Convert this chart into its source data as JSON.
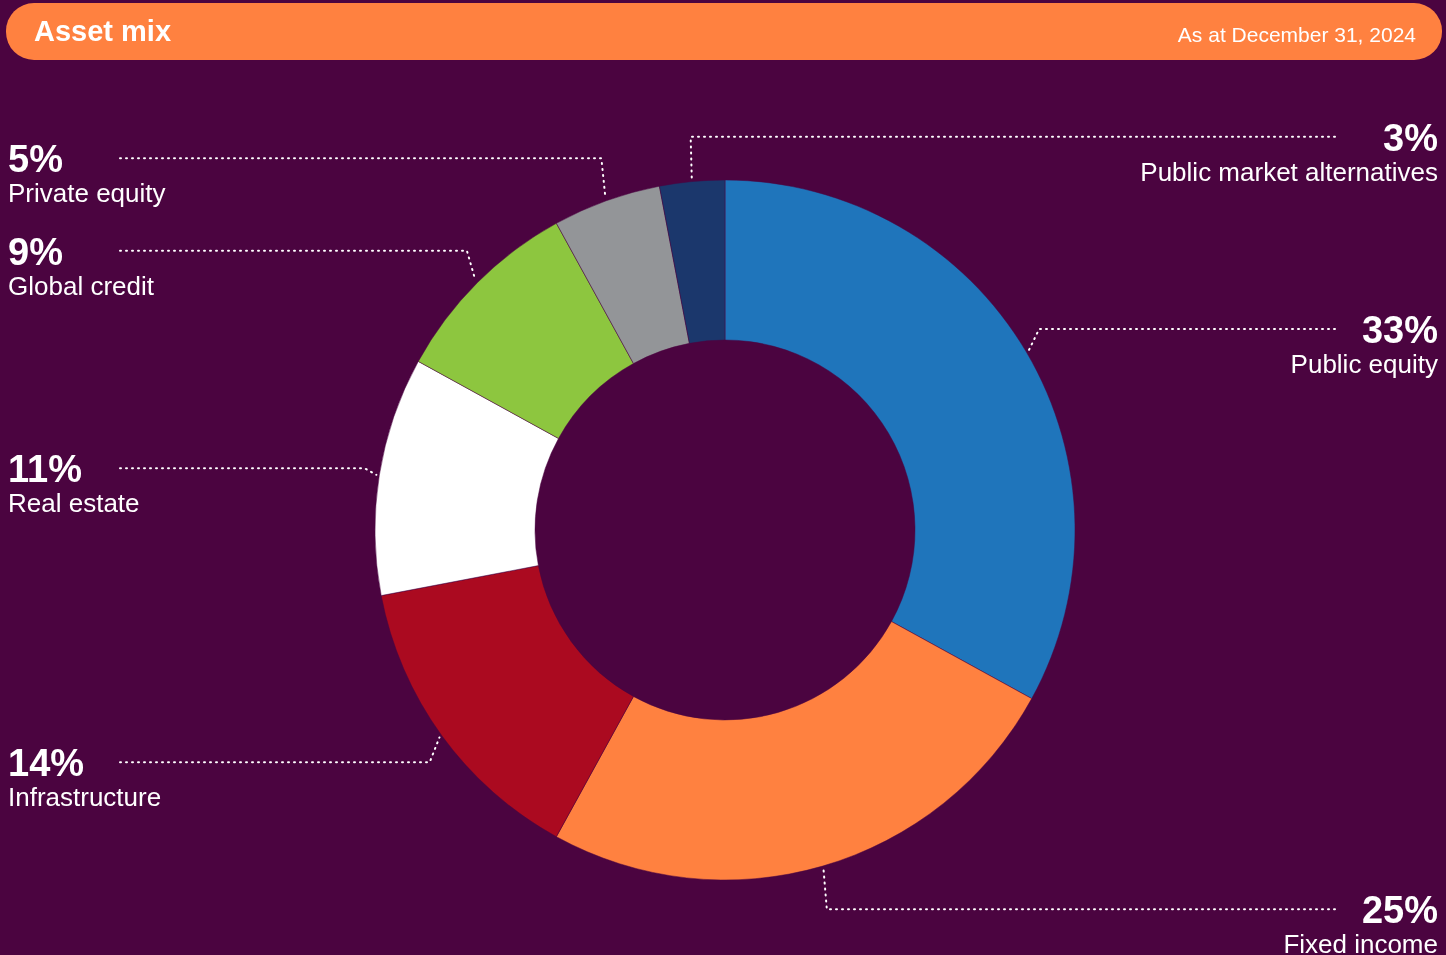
{
  "chart_data": {
    "type": "donut",
    "title": "Asset mix",
    "subtitle": "As at December 31, 2024",
    "categories": [
      "Public equity",
      "Fixed income",
      "Infrastructure",
      "Real estate",
      "Global credit",
      "Private equity",
      "Public market alternatives"
    ],
    "values": [
      33,
      25,
      14,
      11,
      9,
      5,
      3
    ],
    "value_labels": [
      "33%",
      "25%",
      "14%",
      "11%",
      "9%",
      "5%",
      "3%"
    ],
    "colors": [
      "#1f75bb",
      "#ff8140",
      "#ab0a20",
      "#ffffff",
      "#8dc63f",
      "#939598",
      "#1b376c"
    ]
  }
}
